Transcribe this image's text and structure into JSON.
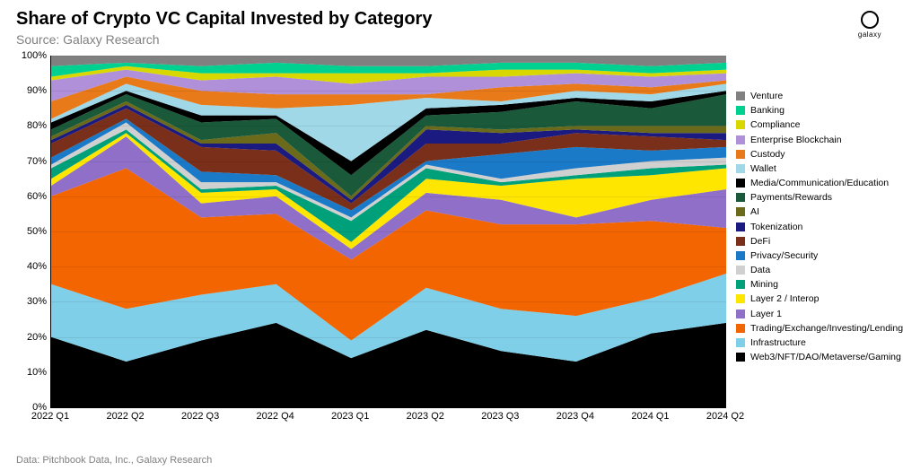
{
  "title": "Share of Crypto VC Capital Invested by Category",
  "subtitle": "Source: Galaxy Research",
  "footer": "Data: Pitchbook Data, Inc., Galaxy Research",
  "logo_label": "galaxy",
  "chart": {
    "type": "stacked-area-100",
    "background_color": "#ffffff",
    "grid_color": "rgba(0,0,0,0.08)",
    "axis_color": "#000000",
    "title_fontsize": 20,
    "label_fontsize": 11,
    "legend_fontsize": 10.5,
    "ylim": [
      0,
      100
    ],
    "ytick_step": 10,
    "ytick_suffix": "%",
    "x_categories": [
      "2022 Q1",
      "2022 Q2",
      "2022 Q3",
      "2022 Q4",
      "2023 Q1",
      "2023 Q2",
      "2023 Q3",
      "2023 Q4",
      "2024 Q1",
      "2024 Q2"
    ],
    "series": [
      {
        "name": "Web3/NFT/DAO/Metaverse/Gaming",
        "color": "#000000",
        "values": [
          20,
          13,
          19,
          24,
          14,
          22,
          16,
          13,
          21,
          24
        ]
      },
      {
        "name": "Infrastructure",
        "color": "#7fcfe8",
        "values": [
          15,
          15,
          13,
          11,
          5,
          12,
          12,
          13,
          10,
          14
        ]
      },
      {
        "name": "Trading/Exchange/Investing/Lending",
        "color": "#f26500",
        "values": [
          25,
          40,
          22,
          20,
          23,
          22,
          24,
          26,
          22,
          13
        ]
      },
      {
        "name": "Layer 1",
        "color": "#8f6fc8",
        "values": [
          3,
          9,
          4,
          5,
          3,
          5,
          7,
          2,
          6,
          11
        ]
      },
      {
        "name": "Layer 2 / Interop",
        "color": "#ffe600",
        "values": [
          2,
          1,
          3,
          2,
          2,
          4,
          4,
          11,
          7,
          6
        ]
      },
      {
        "name": "Mining",
        "color": "#00a07a",
        "values": [
          3,
          1,
          1,
          1,
          6,
          3,
          1,
          1,
          2,
          1
        ]
      },
      {
        "name": "Data",
        "color": "#d0d0d0",
        "values": [
          1,
          2,
          2,
          1,
          1,
          1,
          1,
          2,
          2,
          2
        ]
      },
      {
        "name": "Privacy/Security",
        "color": "#1a7ac8",
        "values": [
          2,
          1,
          3,
          2,
          2,
          1,
          7,
          6,
          3,
          3
        ]
      },
      {
        "name": "DeFi",
        "color": "#7a2f1a",
        "values": [
          4,
          3,
          7,
          7,
          2,
          5,
          3,
          4,
          4,
          2
        ]
      },
      {
        "name": "Tokenization",
        "color": "#1a1a80",
        "values": [
          1,
          1,
          1,
          2,
          1,
          4,
          3,
          1,
          1,
          2
        ]
      },
      {
        "name": "AI",
        "color": "#6a6a1a",
        "values": [
          1,
          1,
          1,
          3,
          1,
          1,
          1,
          1,
          2,
          2
        ]
      },
      {
        "name": "Payments/Rewards",
        "color": "#1a5a3a",
        "values": [
          2,
          2,
          5,
          4,
          6,
          3,
          5,
          7,
          5,
          9
        ]
      },
      {
        "name": "Media/Communication/Education",
        "color": "#000000",
        "values": [
          2,
          1,
          2,
          1,
          4,
          2,
          2,
          1,
          2,
          1
        ]
      },
      {
        "name": "Wallet",
        "color": "#a0d8e8",
        "values": [
          1,
          2,
          3,
          2,
          16,
          3,
          1,
          2,
          2,
          2
        ]
      },
      {
        "name": "Custody",
        "color": "#e87a1a",
        "values": [
          5,
          2,
          4,
          4,
          3,
          1,
          4,
          2,
          2,
          1
        ]
      },
      {
        "name": "Enterprise Blockchain",
        "color": "#b090d8",
        "values": [
          6,
          2,
          3,
          5,
          3,
          5,
          3,
          3,
          3,
          2
        ]
      },
      {
        "name": "Compliance",
        "color": "#d8d800",
        "values": [
          1,
          1,
          2,
          1,
          3,
          1,
          2,
          1,
          1,
          1
        ]
      },
      {
        "name": "Banking",
        "color": "#00d090",
        "values": [
          3,
          1,
          2,
          3,
          2,
          2,
          2,
          2,
          2,
          2
        ]
      },
      {
        "name": "Venture",
        "color": "#808080",
        "values": [
          3,
          2,
          3,
          2,
          3,
          3,
          2,
          2,
          3,
          2
        ]
      }
    ],
    "legend_position": "right"
  }
}
